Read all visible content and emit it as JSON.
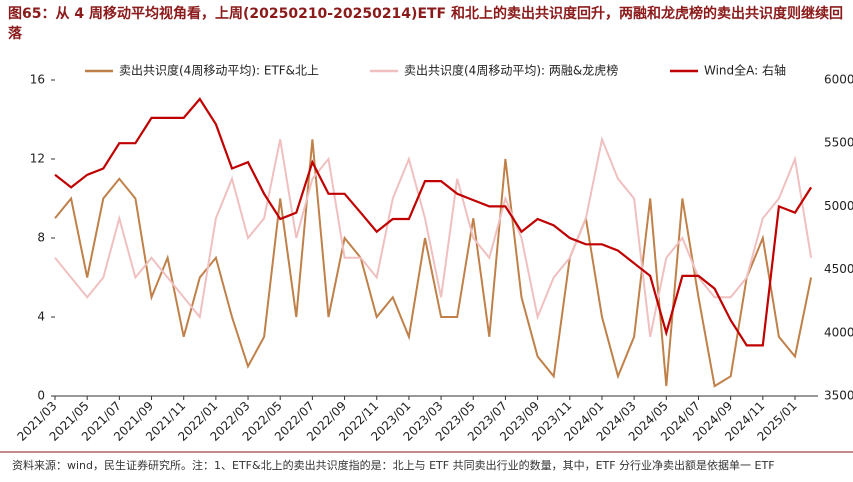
{
  "chart_data": {
    "type": "line",
    "title": "图65：从 4 周移动平均视角看，上周(20250210-20250214)ETF 和北上的卖出共识度回升，两融和龙虎榜的卖出共识度则继续回落",
    "note": "资料来源：wind，民生证券研究所。注：1、ETF&北上的卖出共识度指的是：北上与 ETF 共同卖出行业的数量，其中，ETF 分行业净卖出额是依据单一 ETF",
    "categories": [
      "2021/03",
      null,
      "2021/05",
      null,
      "2021/07",
      null,
      "2021/09",
      null,
      "2021/11",
      null,
      "2022/01",
      null,
      "2022/03",
      null,
      "2022/05",
      null,
      "2022/07",
      null,
      "2022/09",
      null,
      "2022/11",
      null,
      "2023/01",
      null,
      "2023/03",
      null,
      "2023/05",
      null,
      "2023/07",
      null,
      "2023/09",
      null,
      "2023/11",
      null,
      "2024/01",
      null,
      "2024/03",
      null,
      "2024/05",
      null,
      "2024/07",
      null,
      "2024/09",
      null,
      "2024/11",
      null,
      "2025/01",
      null
    ],
    "series": [
      {
        "name": "卖出共识度(4周移动平均): ETF&北上",
        "color": "#c0804a",
        "values": [
          9,
          10,
          6,
          10,
          11,
          10,
          5,
          7,
          3,
          6,
          7,
          4,
          1.5,
          3,
          10,
          4,
          13,
          4,
          8,
          7,
          4,
          5,
          3,
          8,
          4,
          4,
          9,
          3,
          12,
          5,
          2,
          1,
          7,
          9,
          4,
          1,
          3,
          10,
          0.5,
          10,
          5,
          0.5,
          1,
          6,
          8,
          3,
          2,
          6
        ]
      },
      {
        "name": "卖出共识度(4周移动平均): 两融&龙虎榜",
        "color": "#f0c0c0",
        "values": [
          7,
          6,
          5,
          6,
          9,
          6,
          7,
          6,
          5,
          4,
          9,
          11,
          8,
          9,
          13,
          8,
          11,
          12,
          7,
          7,
          6,
          10,
          12,
          9,
          5,
          11,
          8,
          7,
          10,
          8,
          4,
          6,
          7,
          9,
          13,
          11,
          10,
          3,
          7,
          8,
          6,
          5,
          5,
          6,
          9,
          10,
          12,
          7
        ]
      },
      {
        "name": "Wind全A: 右轴",
        "color": "#c00000",
        "axis": "y2",
        "values": [
          5250,
          5150,
          5250,
          5300,
          5500,
          5500,
          5700,
          5700,
          5700,
          5850,
          5650,
          5300,
          5350,
          5100,
          4900,
          4950,
          5350,
          5100,
          5100,
          4950,
          4800,
          4900,
          4900,
          5200,
          5200,
          5100,
          5050,
          5000,
          5000,
          4800,
          4900,
          4850,
          4750,
          4700,
          4700,
          4650,
          4550,
          4450,
          4000,
          4450,
          4450,
          4350,
          4100,
          3900,
          3900,
          5000,
          4950,
          5150
        ]
      }
    ],
    "ylim": [
      0,
      16
    ],
    "yticks": [
      0,
      4,
      8,
      12,
      16
    ],
    "y2lim": [
      3500,
      6000
    ],
    "y2ticks": [
      3500,
      4000,
      4500,
      5000,
      5500,
      6000
    ]
  }
}
